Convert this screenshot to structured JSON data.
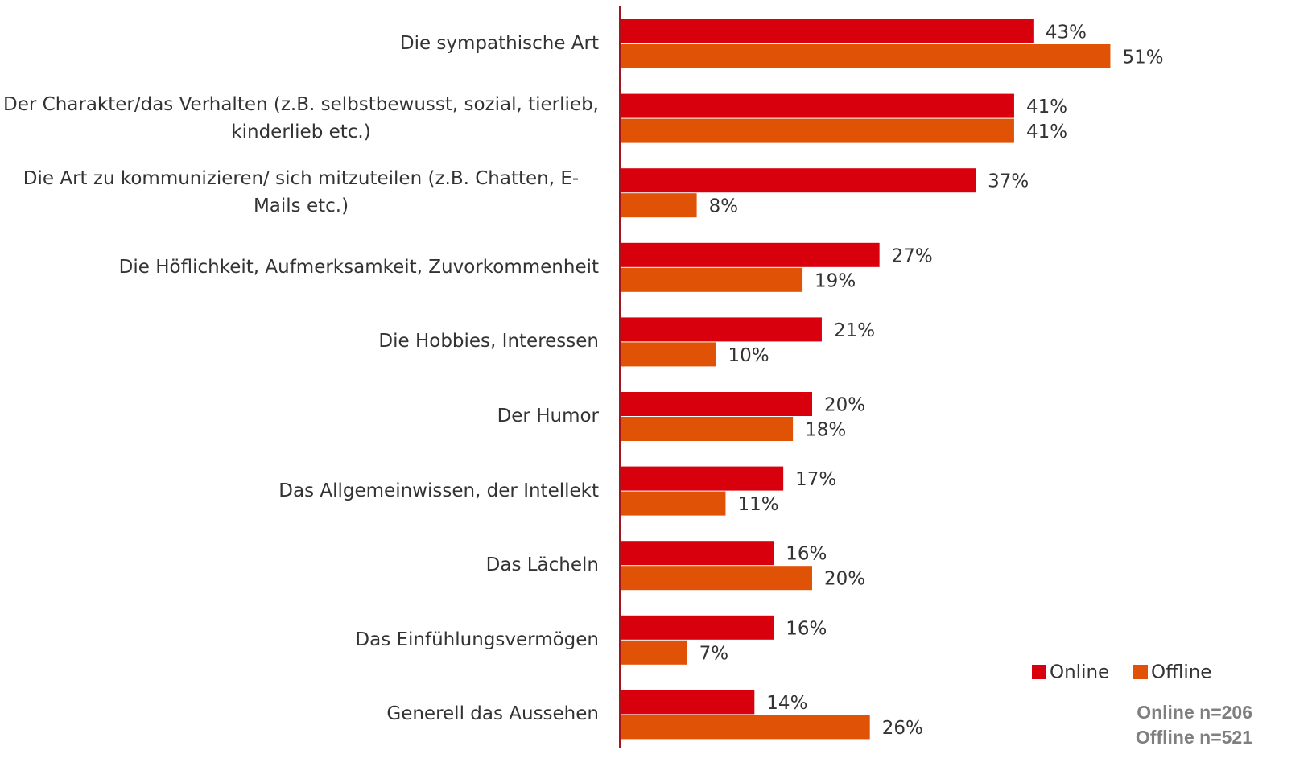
{
  "chart_data": {
    "type": "hbar",
    "categories": [
      "Die sympathische Art",
      "Der Charakter/das Verhalten (z.B. selbstbewusst, sozial, tierlieb, kinderlieb etc.)",
      "Die Art zu kommunizieren/ sich mitzuteilen (z.B. Chatten, E-Mails etc.)",
      "Die Höflichkeit, Aufmerksamkeit, Zuvorkommenheit",
      "Die Hobbies, Interessen",
      "Der Humor",
      "Das Allgemeinwissen, der Intellekt",
      "Das Lächeln",
      "Das Einfühlungsvermögen",
      "Generell das Aussehen"
    ],
    "series": [
      {
        "name": "Online",
        "color": "#d9000d",
        "values": [
          43,
          41,
          37,
          27,
          21,
          20,
          17,
          16,
          16,
          14
        ],
        "value_labels": [
          "43%",
          "41%",
          "37%",
          "27%",
          "21%",
          "20%",
          "17%",
          "16%",
          "16%",
          "14%"
        ]
      },
      {
        "name": "Offline",
        "color": "#e05206",
        "values": [
          51,
          41,
          8,
          19,
          10,
          18,
          11,
          20,
          7,
          26
        ],
        "value_labels": [
          "51%",
          "41%",
          "8%",
          "19%",
          "10%",
          "18%",
          "11%",
          "20%",
          "7%",
          "26%"
        ]
      }
    ],
    "legend": "bottom-right",
    "notes": [
      "Online n=206",
      "Offline n=521"
    ]
  }
}
